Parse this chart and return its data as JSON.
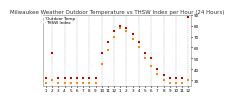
{
  "title": "Milwaukee Weather Outdoor Temperature vs THSW Index per Hour (24 Hours)",
  "background_color": "#ffffff",
  "plot_bg_color": "#ffffff",
  "grid_color": "#aaaaaa",
  "ylim": [
    25,
    90
  ],
  "xlim": [
    -0.5,
    23.5
  ],
  "x_ticks": [
    0,
    1,
    2,
    3,
    4,
    5,
    6,
    7,
    8,
    9,
    10,
    11,
    12,
    13,
    14,
    15,
    16,
    17,
    18,
    19,
    20,
    21,
    22,
    23
  ],
  "x_tick_labels": [
    "1",
    "2",
    "3",
    "4",
    "5",
    "6",
    "7",
    "8",
    "9",
    "10",
    "11",
    "12",
    "1",
    "2",
    "3",
    "4",
    "5",
    "6",
    "7",
    "8",
    "9",
    "10",
    "11",
    "12"
  ],
  "y_ticks": [
    30,
    40,
    50,
    60,
    70,
    80,
    90
  ],
  "y_tick_labels": [
    "30",
    "40",
    "50",
    "60",
    "70",
    "80",
    "90"
  ],
  "vgrid_positions": [
    1,
    3,
    5,
    7,
    9,
    11,
    13,
    15,
    17,
    19,
    21,
    23
  ],
  "series": [
    {
      "name": "Outdoor Temp",
      "color": "#cc0000",
      "marker": "s",
      "size": 2.5,
      "x": [
        0,
        1,
        2,
        3,
        4,
        5,
        6,
        7,
        8,
        9,
        10,
        11,
        12,
        13,
        14,
        15,
        16,
        17,
        18,
        19,
        20,
        21,
        22,
        23
      ],
      "y": [
        32,
        55,
        32,
        32,
        32,
        32,
        32,
        32,
        32,
        55,
        65,
        75,
        80,
        78,
        72,
        65,
        55,
        50,
        40,
        35,
        32,
        32,
        32,
        88
      ]
    },
    {
      "name": "THSW Index",
      "color": "#ff8c00",
      "marker": "s",
      "size": 2.5,
      "x": [
        0,
        1,
        2,
        3,
        4,
        5,
        6,
        7,
        8,
        9,
        10,
        11,
        12,
        13,
        14,
        15,
        16,
        17,
        18,
        19,
        20,
        21,
        22,
        23
      ],
      "y": [
        28,
        30,
        28,
        28,
        28,
        28,
        28,
        28,
        28,
        45,
        58,
        70,
        78,
        75,
        68,
        60,
        50,
        43,
        36,
        30,
        28,
        28,
        28,
        30
      ]
    }
  ],
  "title_fontsize": 4,
  "tick_fontsize": 3,
  "legend_fontsize": 3,
  "legend_labels": [
    "Outdoor Temp",
    "THSW Index"
  ],
  "legend_colors": [
    "#cc0000",
    "#ff8c00"
  ]
}
